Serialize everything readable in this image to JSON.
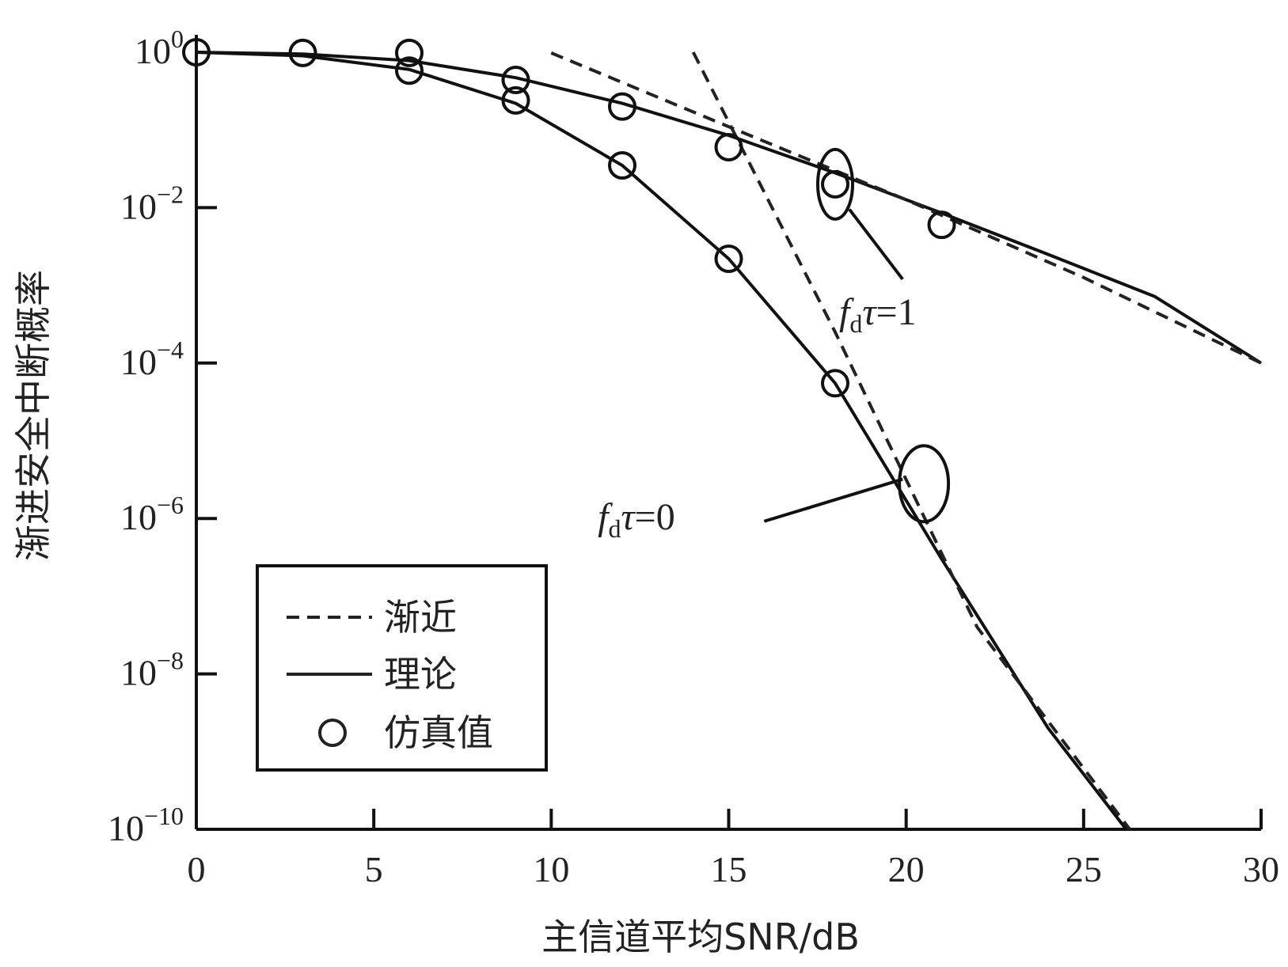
{
  "chart_data": {
    "type": "line",
    "xlabel": "主信道平均SNR/dB",
    "ylabel": "渐进安全中断概率",
    "xlim": [
      0,
      30
    ],
    "ylim_exponent": [
      -10,
      0
    ],
    "yscale": "log",
    "x_ticks": [
      0,
      5,
      10,
      15,
      20,
      25,
      30
    ],
    "y_ticks": [
      {
        "base": "10",
        "exp": "0",
        "value": 1
      },
      {
        "base": "10",
        "exp": "−2",
        "value": 0.01
      },
      {
        "base": "10",
        "exp": "−4",
        "value": 0.0001
      },
      {
        "base": "10",
        "exp": "−6",
        "value": 1e-06
      },
      {
        "base": "10",
        "exp": "−8",
        "value": 1e-08
      },
      {
        "base": "10",
        "exp": "−10",
        "value": 1e-10
      }
    ],
    "grid": false,
    "legend_position": "bottom-left",
    "legend": [
      {
        "label": "渐近",
        "style": "dashed"
      },
      {
        "label": "理论",
        "style": "solid"
      },
      {
        "label": "仿真值",
        "style": "marker-circle"
      }
    ],
    "series": [
      {
        "case": "fdτ=1",
        "theory": {
          "x": [
            0,
            3,
            6,
            9,
            12,
            15,
            18,
            21,
            24,
            27,
            30
          ],
          "y": [
            1.0,
            0.95,
            0.78,
            0.47,
            0.22,
            0.085,
            0.028,
            0.0085,
            0.0025,
            0.00072,
            0.0001
          ]
        },
        "asymptotic": {
          "x": [
            10,
            15,
            20,
            25,
            30
          ],
          "y": [
            0.98,
            0.11,
            0.0126,
            0.00126,
            0.0001
          ]
        },
        "simulation": {
          "x": [
            0,
            3,
            6,
            9,
            12,
            15,
            18,
            21
          ],
          "y": [
            1.0,
            0.98,
            0.98,
            0.44,
            0.2,
            0.06,
            0.02,
            0.006
          ]
        }
      },
      {
        "case": "fdτ=0",
        "theory": {
          "x": [
            0,
            3,
            6,
            9,
            12,
            15,
            18,
            21,
            24,
            26.2
          ],
          "y": [
            1.0,
            0.9,
            0.6,
            0.22,
            0.035,
            0.0022,
            5.5e-05,
            3e-07,
            2e-09,
            1e-10
          ]
        },
        "asymptotic": {
          "x": [
            14,
            18,
            22,
            26.3
          ],
          "y": [
            1.0,
            0.00025,
            4e-08,
            1e-10
          ]
        },
        "simulation": {
          "x": [
            6,
            9,
            12,
            15,
            18
          ],
          "y": [
            0.58,
            0.24,
            0.035,
            0.0022,
            5.5e-05
          ]
        }
      }
    ],
    "annotations": [
      {
        "f": "f",
        "sub": "d",
        "tau": "τ",
        "eq": "=1"
      },
      {
        "f": "f",
        "sub": "d",
        "tau": "τ",
        "eq": "=0"
      }
    ]
  }
}
